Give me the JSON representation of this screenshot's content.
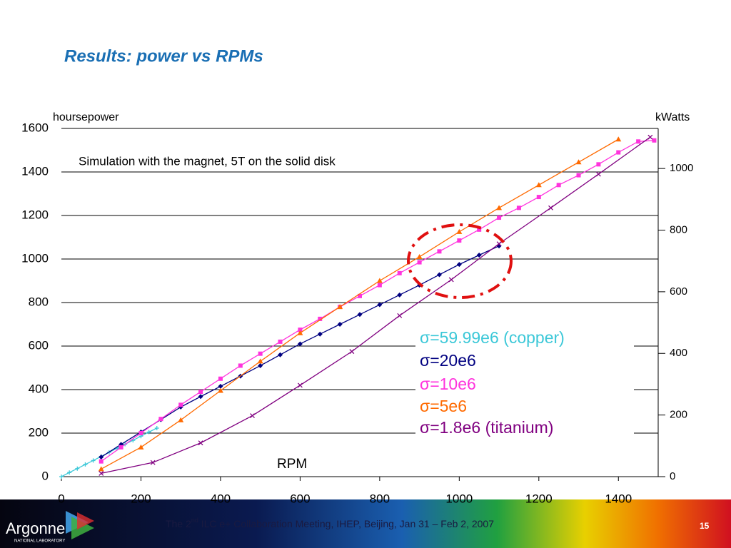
{
  "title": "Results: power vs RPMs",
  "chart_data": {
    "type": "line",
    "annotation": "Simulation with the magnet, 5T on the solid disk",
    "x_label": "RPM",
    "y_label": "hoursepower",
    "y2_label": "kWatts",
    "xlim": [
      0,
      1500
    ],
    "xticks": [
      0,
      200,
      400,
      600,
      800,
      1000,
      1200,
      1400
    ],
    "ylim": [
      0,
      1600
    ],
    "yticks": [
      0,
      200,
      400,
      600,
      800,
      1000,
      1200,
      1400,
      1600
    ],
    "y2lim": [
      0,
      1130
    ],
    "y2ticks": [
      0,
      200,
      400,
      600,
      800,
      1000
    ],
    "grid": true,
    "series": [
      {
        "name": "σ=59.99e6 (copper)",
        "color": "#3cc8d8",
        "marker": "cross",
        "x": [
          0,
          20,
          40,
          60,
          80,
          100,
          120,
          140,
          160,
          180,
          200,
          220,
          240
        ],
        "values": [
          0,
          19,
          37,
          56,
          74,
          93,
          112,
          130,
          149,
          167,
          186,
          205,
          223
        ]
      },
      {
        "name": "σ=20e6",
        "color": "#000080",
        "marker": "diamond",
        "x": [
          100,
          150,
          200,
          250,
          300,
          350,
          400,
          450,
          500,
          550,
          600,
          650,
          700,
          750,
          800,
          850,
          900,
          950,
          1000,
          1050,
          1100
        ],
        "values": [
          90,
          148,
          205,
          262,
          320,
          368,
          415,
          462,
          510,
          560,
          610,
          655,
          700,
          745,
          790,
          835,
          880,
          928,
          975,
          1018,
          1060
        ]
      },
      {
        "name": "σ=10e6",
        "color": "#ff33dd",
        "marker": "square",
        "x": [
          100,
          150,
          200,
          250,
          300,
          350,
          400,
          450,
          500,
          550,
          600,
          650,
          700,
          750,
          800,
          850,
          900,
          950,
          1000,
          1050,
          1100,
          1150,
          1200,
          1250,
          1300,
          1350,
          1400,
          1450,
          1490
        ],
        "values": [
          70,
          135,
          200,
          265,
          330,
          390,
          450,
          510,
          565,
          620,
          675,
          725,
          780,
          830,
          880,
          935,
          985,
          1035,
          1085,
          1135,
          1190,
          1235,
          1285,
          1340,
          1385,
          1435,
          1490,
          1540,
          1545
        ]
      },
      {
        "name": "σ=5e6",
        "color": "#ff6a00",
        "marker": "triangle",
        "x": [
          100,
          200,
          300,
          400,
          500,
          600,
          700,
          800,
          900,
          1000,
          1100,
          1200,
          1300,
          1400
        ],
        "values": [
          35,
          135,
          260,
          395,
          530,
          660,
          780,
          900,
          1010,
          1125,
          1235,
          1340,
          1445,
          1550
        ]
      },
      {
        "name": "σ=1.8e6 (titanium)",
        "color": "#800080",
        "marker": "x",
        "x": [
          100,
          230,
          350,
          480,
          600,
          730,
          850,
          980,
          1100,
          1230,
          1350,
          1480
        ],
        "values": [
          15,
          65,
          155,
          280,
          420,
          575,
          740,
          905,
          1070,
          1235,
          1390,
          1560
        ]
      }
    ]
  },
  "footer": {
    "text_before": "The 2",
    "superscript": "nd",
    "text_after": " ILC e+ Collaboration Meeting, IHEP, Beijing, Jan 31 – Feb 2, 2007",
    "page_number": "15",
    "logo": "Argonne",
    "logo_sub": "NATIONAL LABORATORY"
  }
}
